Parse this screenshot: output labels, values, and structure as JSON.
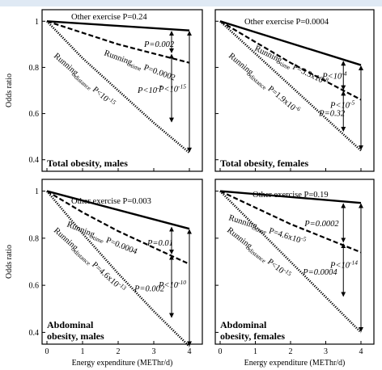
{
  "chart_data": {
    "type": "line",
    "shared_axes": {
      "ylabel": "Odds ratio",
      "xlabel": "Energy expenditure (METhr/d)",
      "xticks": [
        "0",
        "1",
        "2",
        "3",
        "4"
      ],
      "yticks": [
        "0.4",
        "0.6",
        "0.8",
        "1"
      ],
      "xlim": [
        0,
        4
      ],
      "ylim": [
        0.35,
        1.05
      ]
    },
    "panels": [
      {
        "title": "Total obesity, males",
        "series": [
          {
            "name": "Other exercise",
            "style": "solid",
            "x": [
              0,
              4
            ],
            "y": [
              1.0,
              0.96
            ],
            "label": "Other exercise P=0.24"
          },
          {
            "name": "Running time",
            "style": "dashed",
            "x": [
              0,
              1,
              2,
              3,
              4
            ],
            "y": [
              1.0,
              0.95,
              0.9,
              0.86,
              0.82
            ],
            "label_prefix": "Running",
            "label_sub": "time",
            "label_suffix": " P=0.0002"
          },
          {
            "name": "Running distance",
            "style": "dotted",
            "x": [
              0,
              1,
              2,
              3,
              4
            ],
            "y": [
              1.0,
              0.84,
              0.7,
              0.56,
              0.43
            ],
            "label_prefix": "Running",
            "label_sub": "distance",
            "label_suffix": " P<10",
            "label_sup": "-15"
          }
        ],
        "comparisons": [
          {
            "text": "P=0.002",
            "x": 3.5,
            "from": 0.96,
            "to": 0.86
          },
          {
            "text": "P<10",
            "sup": "-7",
            "x": 3.5,
            "from": 0.86,
            "to": 0.56
          },
          {
            "text": "P<10",
            "sup": "-15",
            "x": 4,
            "from": 0.96,
            "to": 0.43
          }
        ]
      },
      {
        "title": "Total obesity, females",
        "series": [
          {
            "name": "Other exercise",
            "style": "solid",
            "x": [
              0,
              4
            ],
            "y": [
              1.0,
              0.81
            ],
            "label": "Other exercise P=0.0004"
          },
          {
            "name": "Running time",
            "style": "dashed",
            "x": [
              0,
              1,
              2,
              3,
              4
            ],
            "y": [
              1.0,
              0.91,
              0.82,
              0.74,
              0.66
            ],
            "label_prefix": "Running",
            "label_sub": "time",
            "label_suffix": " P=5.3x10",
            "label_sup": "-8"
          },
          {
            "name": "Running distance",
            "style": "dotted",
            "x": [
              0,
              1,
              2,
              3,
              4
            ],
            "y": [
              1.0,
              0.86,
              0.72,
              0.58,
              0.44
            ],
            "label_prefix": "Running",
            "label_sub": "distance",
            "label_suffix": " P=1.9x10",
            "label_sup": "-6"
          }
        ],
        "comparisons": [
          {
            "text": "P<10",
            "sup": "-4",
            "x": 3.5,
            "from": 0.83,
            "to": 0.7
          },
          {
            "text": "P=0.32",
            "x": 3.5,
            "from": 0.7,
            "to": 0.52
          },
          {
            "text": "P<10",
            "sup": "-5",
            "x": 4,
            "from": 0.81,
            "to": 0.44
          }
        ]
      },
      {
        "title": "Abdominal obesity, males",
        "series": [
          {
            "name": "Other exercise",
            "style": "solid",
            "x": [
              0,
              4
            ],
            "y": [
              1.0,
              0.84
            ],
            "label": "Other exercise P=0.003"
          },
          {
            "name": "Running time",
            "style": "dashed",
            "x": [
              0,
              1,
              2,
              3,
              4
            ],
            "y": [
              1.0,
              0.91,
              0.83,
              0.76,
              0.69
            ],
            "label_prefix": "Running",
            "label_sub": "time",
            "label_suffix": " P=0.0004"
          },
          {
            "name": "Running distance",
            "style": "dotted",
            "x": [
              0,
              1,
              2,
              3,
              4
            ],
            "y": [
              1.0,
              0.82,
              0.65,
              0.49,
              0.34
            ],
            "label_prefix": "Running",
            "label_sub": "distance",
            "label_suffix": " P=4.6x10",
            "label_sup": "-13"
          }
        ],
        "comparisons": [
          {
            "text": "P=0.01",
            "x": 3.5,
            "from": 0.85,
            "to": 0.73
          },
          {
            "text": "P=0.002",
            "x": 3.5,
            "from": 0.73,
            "to": 0.46
          },
          {
            "text": "P<10",
            "sup": "-10",
            "x": 4,
            "from": 0.84,
            "to": 0.34
          }
        ]
      },
      {
        "title": "Abdominal obesity, females",
        "series": [
          {
            "name": "Other exercise",
            "style": "solid",
            "x": [
              0,
              4
            ],
            "y": [
              1.0,
              0.95
            ],
            "label": "Other exercise P=0.19"
          },
          {
            "name": "Running time",
            "style": "dashed",
            "x": [
              0,
              1,
              2,
              3,
              4
            ],
            "y": [
              1.0,
              0.93,
              0.86,
              0.8,
              0.74
            ],
            "label_prefix": "Running",
            "label_sub": "time",
            "label_suffix": " P=4.6x10",
            "label_sup": "-5"
          },
          {
            "name": "Running distance",
            "style": "dotted",
            "x": [
              0,
              1,
              2,
              3,
              4
            ],
            "y": [
              1.0,
              0.85,
              0.7,
              0.55,
              0.4
            ],
            "label_prefix": "Running",
            "label_sub": "distance",
            "label_suffix": " P<10",
            "label_sup": "-15"
          }
        ],
        "comparisons": [
          {
            "text": "P=0.0002",
            "x": 3.5,
            "from": 0.95,
            "to": 0.78
          },
          {
            "text": "P=0.0004",
            "x": 3.5,
            "from": 0.78,
            "to": 0.55
          },
          {
            "text": "P<10",
            "sup": "-14",
            "x": 4,
            "from": 0.95,
            "to": 0.4
          }
        ]
      }
    ]
  }
}
